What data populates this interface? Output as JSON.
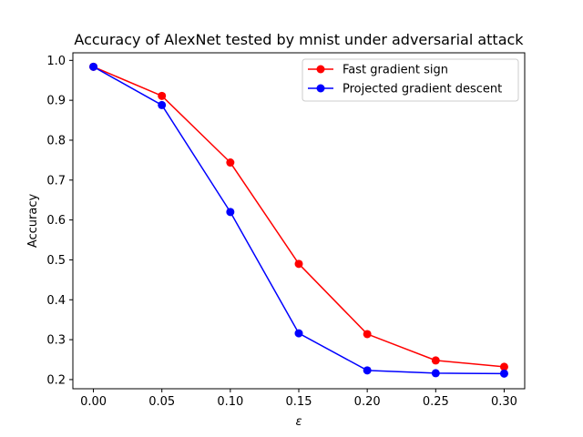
{
  "chart_data": {
    "type": "line",
    "title": "Accuracy of AlexNet tested by mnist under adversarial attack",
    "xlabel": "ε",
    "ylabel": "Accuracy",
    "x": [
      0.0,
      0.05,
      0.1,
      0.15,
      0.2,
      0.25,
      0.3
    ],
    "xticks": [
      "0.00",
      "0.05",
      "0.10",
      "0.15",
      "0.20",
      "0.25",
      "0.30"
    ],
    "yticks": [
      "0.2",
      "0.3",
      "0.4",
      "0.5",
      "0.6",
      "0.7",
      "0.8",
      "0.9",
      "1.0"
    ],
    "xlim": [
      -0.015,
      0.315
    ],
    "ylim": [
      0.177,
      1.019
    ],
    "grid": false,
    "legend_position": "top-right",
    "series": [
      {
        "name": "Fast gradient sign",
        "color": "#ff0000",
        "marker": "circle",
        "values": [
          0.984,
          0.911,
          0.744,
          0.49,
          0.314,
          0.248,
          0.232
        ]
      },
      {
        "name": "Projected gradient descent",
        "color": "#0000ff",
        "marker": "circle",
        "values": [
          0.984,
          0.888,
          0.62,
          0.316,
          0.223,
          0.216,
          0.215
        ]
      }
    ]
  }
}
